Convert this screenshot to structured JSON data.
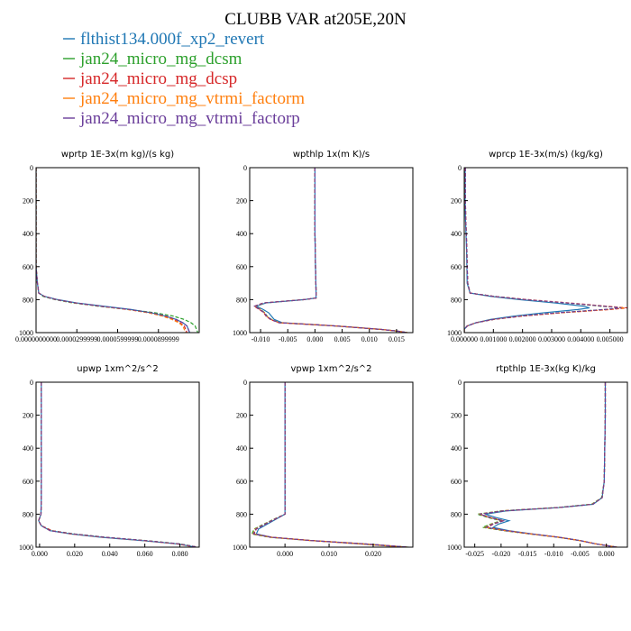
{
  "page": {
    "title": "CLUBB VAR at205E,20N"
  },
  "legend": [
    {
      "label": "flthist134.000f_xp2_revert",
      "color": "#1f77b4"
    },
    {
      "label": "jan24_micro_mg_dcsm",
      "color": "#2ca02c"
    },
    {
      "label": "jan24_micro_mg_dcsp",
      "color": "#d62728"
    },
    {
      "label": "jan24_micro_mg_vtrmi_factorm",
      "color": "#ff7f0e"
    },
    {
      "label": "jan24_micro_mg_vtrmi_factorp",
      "color": "#6a3d9a"
    }
  ],
  "chart_data": [
    {
      "type": "line",
      "title": "wprtp  1E-3x(m kg)/(s kg)",
      "xlim": [
        0,
        0.00012
      ],
      "ylim": [
        1000,
        0
      ],
      "xticks": [
        0,
        3e-05,
        6e-05,
        9e-05
      ],
      "xtick_labels": [
        "0.0000000000",
        "0.0000299999",
        "0.0000599999",
        "0.0000899999"
      ],
      "yticks": [
        0,
        200,
        400,
        600,
        800,
        1000
      ],
      "ytick_labels": [
        "0",
        "200",
        "400",
        "600",
        "800",
        "1000"
      ],
      "y": [
        0,
        100,
        200,
        300,
        400,
        500,
        600,
        700,
        760,
        780,
        800,
        820,
        840,
        860,
        880,
        900,
        920,
        940,
        960,
        980,
        1000
      ],
      "series": [
        {
          "color": "#1f77b4",
          "x": [
            0,
            0,
            0,
            0,
            0,
            0,
            0,
            1e-06,
            2e-06,
            6e-06,
            1.6e-05,
            3e-05,
            5e-05,
            7e-05,
            8.5e-05,
            9.5e-05,
            0.000103,
            0.000108,
            0.000111,
            0.000112,
            0.000113
          ]
        },
        {
          "color": "#2ca02c",
          "x": [
            0,
            0,
            0,
            0,
            0,
            0,
            0,
            1e-06,
            2e-06,
            5e-06,
            1.4e-05,
            2.7e-05,
            4.6e-05,
            6.8e-05,
            8.8e-05,
            0.000101,
            0.000109,
            0.000114,
            0.000117,
            0.000118,
            0.000119
          ]
        },
        {
          "color": "#d62728",
          "x": [
            0,
            0,
            0,
            0,
            0,
            0,
            0,
            1e-06,
            2e-06,
            6e-06,
            1.5e-05,
            2.9e-05,
            4.8e-05,
            6.8e-05,
            8.4e-05,
            9.4e-05,
            0.000101,
            0.000106,
            0.000109,
            0.00011,
            0.000111
          ]
        },
        {
          "color": "#ff7f0e",
          "x": [
            0,
            0,
            0,
            0,
            0,
            0,
            0,
            1e-06,
            2e-06,
            6e-06,
            1.5e-05,
            2.8e-05,
            4.7e-05,
            6.7e-05,
            8.3e-05,
            9.3e-05,
            0.0001,
            0.000105,
            0.000108,
            0.000109,
            0.00011
          ]
        },
        {
          "color": "#6a3d9a",
          "x": [
            0,
            0,
            0,
            0,
            0,
            0,
            0,
            1e-06,
            2e-06,
            6e-06,
            1.5e-05,
            2.9e-05,
            4.8e-05,
            6.9e-05,
            8.5e-05,
            9.6e-05,
            0.000103,
            0.000108,
            0.000111,
            0.000112,
            0.000113
          ]
        }
      ]
    },
    {
      "type": "line",
      "title": "wpthlp  1x(m K)/s",
      "xlim": [
        -0.012,
        0.018
      ],
      "ylim": [
        1000,
        0
      ],
      "xticks": [
        -0.01,
        -0.005,
        0,
        0.005,
        0.01,
        0.015
      ],
      "xtick_labels": [
        "-0.010",
        "-0.005",
        "0.000",
        "0.005",
        "0.010",
        "0.015"
      ],
      "yticks": [
        0,
        200,
        400,
        600,
        800,
        1000
      ],
      "ytick_labels": [
        "0",
        "200",
        "400",
        "600",
        "800",
        "1000"
      ],
      "y": [
        0,
        200,
        400,
        600,
        750,
        790,
        800,
        820,
        840,
        860,
        880,
        900,
        920,
        940,
        950,
        960,
        970,
        980,
        990,
        1000
      ],
      "series": [
        {
          "color": "#1f77b4",
          "x": [
            0,
            0,
            0,
            0.0001,
            0.0002,
            0.0002,
            -0.002,
            -0.009,
            -0.0108,
            -0.0095,
            -0.0085,
            -0.008,
            -0.0075,
            -0.006,
            -0.001,
            0.004,
            0.008,
            0.012,
            0.015,
            0.017
          ]
        },
        {
          "color": "#2ca02c",
          "x": [
            0,
            0,
            0,
            0.0001,
            0.0002,
            0.0002,
            -0.002,
            -0.0092,
            -0.011,
            -0.01,
            -0.0092,
            -0.0088,
            -0.008,
            -0.0065,
            -0.001,
            0.004,
            0.008,
            0.012,
            0.015,
            0.017
          ]
        },
        {
          "color": "#d62728",
          "x": [
            0,
            0,
            0,
            0.0001,
            0.0002,
            0.0002,
            -0.002,
            -0.0095,
            -0.0112,
            -0.0102,
            -0.0094,
            -0.009,
            -0.0082,
            -0.0066,
            -0.001,
            0.004,
            0.008,
            0.012,
            0.015,
            0.017
          ]
        },
        {
          "color": "#ff7f0e",
          "x": [
            0,
            0,
            0,
            0.0001,
            0.0002,
            0.0002,
            -0.002,
            -0.0093,
            -0.011,
            -0.01,
            -0.0093,
            -0.0089,
            -0.0081,
            -0.0065,
            -0.001,
            0.004,
            0.008,
            0.012,
            0.015,
            0.017
          ]
        },
        {
          "color": "#6a3d9a",
          "x": [
            0,
            0,
            0,
            0.0001,
            0.0002,
            0.0002,
            -0.002,
            -0.0094,
            -0.0111,
            -0.0101,
            -0.0093,
            -0.0089,
            -0.0081,
            -0.0066,
            -0.001,
            0.004,
            0.008,
            0.012,
            0.015,
            0.017
          ]
        }
      ]
    },
    {
      "type": "line",
      "title": "wprcp  1E-3x(m/s) (kg/kg)",
      "xlim": [
        0,
        0.0056
      ],
      "ylim": [
        1000,
        0
      ],
      "xticks": [
        0,
        0.001,
        0.002,
        0.003,
        0.004,
        0.005
      ],
      "xtick_labels": [
        "0.000000",
        "0.001000",
        "0.002000",
        "0.003000",
        "0.004000",
        "0.005000"
      ],
      "yticks": [
        0,
        200,
        400,
        600,
        800,
        1000
      ],
      "ytick_labels": [
        "0",
        "200",
        "400",
        "600",
        "800",
        "1000"
      ],
      "y": [
        0,
        100,
        200,
        300,
        400,
        500,
        600,
        700,
        760,
        780,
        800,
        820,
        840,
        850,
        860,
        880,
        900,
        920,
        940,
        960,
        980,
        1000
      ],
      "series": [
        {
          "color": "#1f77b4",
          "x": [
            3e-05,
            3e-05,
            3e-05,
            4e-05,
            6e-05,
            8e-05,
            9e-05,
            0.0001,
            0.0002,
            0.0009,
            0.0019,
            0.0031,
            0.0041,
            0.0043,
            0.0039,
            0.0027,
            0.0017,
            0.0009,
            0.0004,
            0.0001,
            0,
            0
          ]
        },
        {
          "color": "#2ca02c",
          "x": [
            4e-05,
            4e-05,
            4e-05,
            5e-05,
            7e-05,
            9e-05,
            0.0001,
            0.00012,
            0.0002,
            0.001,
            0.0021,
            0.0035,
            0.0047,
            0.0055,
            0.0048,
            0.0032,
            0.0019,
            0.001,
            0.0004,
            0.0001,
            0,
            0
          ]
        },
        {
          "color": "#d62728",
          "x": [
            4e-05,
            4e-05,
            4e-05,
            5e-05,
            7e-05,
            9e-05,
            0.0001,
            0.00012,
            0.0002,
            0.001,
            0.0022,
            0.0036,
            0.0049,
            0.0056,
            0.005,
            0.0033,
            0.002,
            0.001,
            0.0004,
            0.0001,
            0,
            0
          ]
        },
        {
          "color": "#ff7f0e",
          "x": [
            4e-05,
            4e-05,
            4e-05,
            5e-05,
            7e-05,
            9e-05,
            0.0001,
            0.00012,
            0.0002,
            0.001,
            0.0021,
            0.0035,
            0.0048,
            0.0055,
            0.0049,
            0.0033,
            0.0019,
            0.001,
            0.0004,
            0.0001,
            0,
            0
          ]
        },
        {
          "color": "#6a3d9a",
          "x": [
            4e-05,
            4e-05,
            4e-05,
            5e-05,
            7e-05,
            9e-05,
            0.0001,
            0.00012,
            0.0002,
            0.001,
            0.0021,
            0.0035,
            0.0048,
            0.0054,
            0.0048,
            0.0032,
            0.0019,
            0.001,
            0.0004,
            0.0001,
            0,
            0
          ]
        }
      ]
    },
    {
      "type": "line",
      "title": "upwp  1xm^2/s^2",
      "xlim": [
        -0.002,
        0.091
      ],
      "ylim": [
        1000,
        0
      ],
      "xticks": [
        0,
        0.02,
        0.04,
        0.06,
        0.08
      ],
      "xtick_labels": [
        "0.000",
        "0.020",
        "0.040",
        "0.060",
        "0.080"
      ],
      "yticks": [
        0,
        200,
        400,
        600,
        800,
        1000
      ],
      "ytick_labels": [
        "0",
        "200",
        "400",
        "600",
        "800",
        "1000"
      ],
      "y": [
        0,
        100,
        200,
        300,
        400,
        500,
        600,
        700,
        800,
        840,
        870,
        900,
        920,
        940,
        960,
        980,
        1000
      ],
      "series": [
        {
          "color": "#1f77b4",
          "x": [
            0.001,
            0.001,
            0.001,
            0.001,
            0.001,
            0.001,
            0.001,
            0.001,
            0.0008,
            -0.0005,
            0.001,
            0.006,
            0.018,
            0.035,
            0.058,
            0.078,
            0.089
          ]
        },
        {
          "color": "#2ca02c",
          "x": [
            0.001,
            0.001,
            0.001,
            0.001,
            0.001,
            0.001,
            0.001,
            0.001,
            0.0008,
            -0.0006,
            0.001,
            0.007,
            0.02,
            0.038,
            0.061,
            0.08,
            0.09
          ]
        },
        {
          "color": "#d62728",
          "x": [
            0.001,
            0.001,
            0.001,
            0.001,
            0.001,
            0.001,
            0.001,
            0.001,
            0.0008,
            -0.0006,
            0.001,
            0.007,
            0.019,
            0.037,
            0.06,
            0.079,
            0.09
          ]
        },
        {
          "color": "#ff7f0e",
          "x": [
            0.001,
            0.001,
            0.001,
            0.001,
            0.001,
            0.001,
            0.001,
            0.001,
            0.0008,
            -0.0005,
            0.001,
            0.006,
            0.018,
            0.036,
            0.059,
            0.078,
            0.089
          ]
        },
        {
          "color": "#6a3d9a",
          "x": [
            0.001,
            0.001,
            0.001,
            0.001,
            0.001,
            0.001,
            0.001,
            0.001,
            0.0008,
            -0.0005,
            0.001,
            0.006,
            0.019,
            0.037,
            0.06,
            0.079,
            0.09
          ]
        }
      ]
    },
    {
      "type": "line",
      "title": "vpwp  1xm^2/s^2",
      "xlim": [
        -0.008,
        0.029
      ],
      "ylim": [
        1000,
        0
      ],
      "xticks": [
        0,
        0.01,
        0.02
      ],
      "xtick_labels": [
        "0.000",
        "0.010",
        "0.020"
      ],
      "yticks": [
        0,
        200,
        400,
        600,
        800,
        1000
      ],
      "ytick_labels": [
        "0",
        "200",
        "400",
        "600",
        "800",
        "1000"
      ],
      "y": [
        0,
        100,
        200,
        300,
        400,
        500,
        600,
        700,
        800,
        830,
        860,
        890,
        920,
        940,
        960,
        980,
        1000
      ],
      "series": [
        {
          "color": "#1f77b4",
          "x": [
            0,
            0,
            0,
            0,
            0,
            0,
            0,
            0,
            0,
            -0.002,
            -0.004,
            -0.006,
            -0.0065,
            -0.003,
            0.006,
            0.017,
            0.027
          ]
        },
        {
          "color": "#2ca02c",
          "x": [
            0,
            0,
            0,
            0,
            0,
            0,
            0,
            0,
            0,
            -0.0025,
            -0.0048,
            -0.007,
            -0.0075,
            -0.0035,
            0.006,
            0.018,
            0.028
          ]
        },
        {
          "color": "#d62728",
          "x": [
            0,
            0,
            0,
            0,
            0,
            0,
            0,
            0,
            0,
            -0.0022,
            -0.0044,
            -0.0065,
            -0.007,
            -0.003,
            0.006,
            0.018,
            0.028
          ]
        },
        {
          "color": "#ff7f0e",
          "x": [
            0,
            0,
            0,
            0,
            0,
            0,
            0,
            0,
            0,
            -0.0024,
            -0.0046,
            -0.0068,
            -0.0072,
            -0.0032,
            0.006,
            0.017,
            0.027
          ]
        },
        {
          "color": "#6a3d9a",
          "x": [
            0,
            0,
            0,
            0,
            0,
            0,
            0,
            0,
            0,
            -0.0023,
            -0.0045,
            -0.0066,
            -0.0071,
            -0.0031,
            0.006,
            0.018,
            0.028
          ]
        }
      ]
    },
    {
      "type": "line",
      "title": "rtpthlp  1E-3x(kg K)/kg",
      "xlim": [
        -0.027,
        0.004
      ],
      "ylim": [
        1000,
        0
      ],
      "xticks": [
        -0.025,
        -0.02,
        -0.015,
        -0.01,
        -0.005,
        0
      ],
      "xtick_labels": [
        "-0.025",
        "-0.020",
        "-0.015",
        "-0.010",
        "-0.005",
        "0.000"
      ],
      "yticks": [
        0,
        200,
        400,
        600,
        800,
        1000
      ],
      "ytick_labels": [
        "0",
        "200",
        "400",
        "600",
        "800",
        "1000"
      ],
      "y": [
        0,
        200,
        400,
        600,
        700,
        740,
        760,
        780,
        800,
        820,
        840,
        860,
        880,
        900,
        920,
        940,
        960,
        980,
        1000
      ],
      "series": [
        {
          "color": "#1f77b4",
          "x": [
            -0.0002,
            -0.0002,
            -0.0003,
            -0.0004,
            -0.0008,
            -0.0025,
            -0.009,
            -0.019,
            -0.023,
            -0.021,
            -0.0185,
            -0.0205,
            -0.0215,
            -0.0185,
            -0.014,
            -0.009,
            -0.005,
            -0.002,
            0.002
          ]
        },
        {
          "color": "#2ca02c",
          "x": [
            -0.0002,
            -0.0002,
            -0.0003,
            -0.0004,
            -0.0009,
            -0.0028,
            -0.0095,
            -0.02,
            -0.0245,
            -0.0225,
            -0.02,
            -0.022,
            -0.0235,
            -0.0195,
            -0.0145,
            -0.0092,
            -0.005,
            -0.002,
            0.002
          ]
        },
        {
          "color": "#d62728",
          "x": [
            -0.0002,
            -0.0002,
            -0.0003,
            -0.0004,
            -0.0008,
            -0.0026,
            -0.0092,
            -0.0195,
            -0.024,
            -0.022,
            -0.0195,
            -0.0215,
            -0.0225,
            -0.019,
            -0.0142,
            -0.009,
            -0.005,
            -0.002,
            0.002
          ]
        },
        {
          "color": "#ff7f0e",
          "x": [
            -0.0002,
            -0.0002,
            -0.0003,
            -0.0004,
            -0.0008,
            -0.0027,
            -0.0093,
            -0.0198,
            -0.0242,
            -0.0222,
            -0.0197,
            -0.0218,
            -0.023,
            -0.0192,
            -0.0143,
            -0.0091,
            -0.005,
            -0.002,
            0.002
          ]
        },
        {
          "color": "#6a3d9a",
          "x": [
            -0.0002,
            -0.0002,
            -0.0003,
            -0.0004,
            -0.0008,
            -0.0026,
            -0.0092,
            -0.0196,
            -0.0241,
            -0.0221,
            -0.0196,
            -0.0216,
            -0.0228,
            -0.0191,
            -0.0142,
            -0.009,
            -0.005,
            -0.002,
            0.002
          ]
        }
      ]
    }
  ]
}
